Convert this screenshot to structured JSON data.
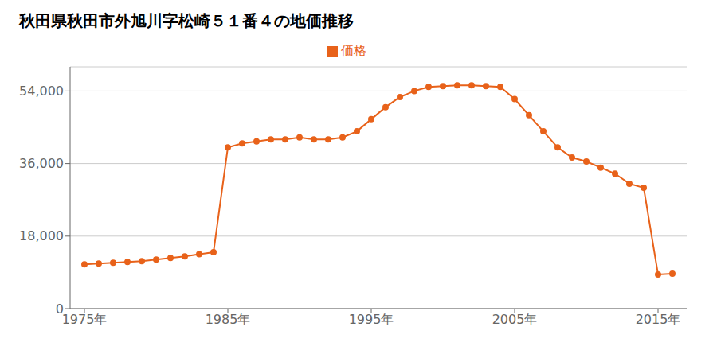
{
  "chart_data": {
    "type": "line",
    "title": "秋田県秋田市外旭川字松崎５１番４の地価推移",
    "x": [
      1975,
      1976,
      1977,
      1978,
      1979,
      1980,
      1981,
      1982,
      1983,
      1984,
      1985,
      1986,
      1987,
      1988,
      1989,
      1990,
      1991,
      1992,
      1993,
      1994,
      1995,
      1996,
      1997,
      1998,
      1999,
      2000,
      2001,
      2002,
      2003,
      2004,
      2005,
      2006,
      2007,
      2008,
      2009,
      2010,
      2011,
      2012,
      2013,
      2014,
      2015,
      2016
    ],
    "series": [
      {
        "name": "価格",
        "color": "#e8621a",
        "marker": "circle",
        "values": [
          11000,
          11200,
          11400,
          11600,
          11800,
          12200,
          12600,
          13000,
          13500,
          14000,
          40000,
          41000,
          41500,
          42000,
          42000,
          42500,
          42000,
          42000,
          42500,
          44000,
          47000,
          50000,
          52500,
          54000,
          55000,
          55200,
          55400,
          55400,
          55200,
          55000,
          52000,
          48000,
          44000,
          40000,
          37500,
          36500,
          35000,
          33500,
          31000,
          30000,
          8500,
          8700
        ]
      }
    ],
    "xlim": [
      1974,
      2017
    ],
    "xticks": [
      {
        "value": 1975,
        "label": "1975年"
      },
      {
        "value": 1985,
        "label": "1985年"
      },
      {
        "value": 1995,
        "label": "1995年"
      },
      {
        "value": 2005,
        "label": "2005年"
      },
      {
        "value": 2015,
        "label": "2015年"
      }
    ],
    "ylim": [
      0,
      60000
    ],
    "yticks": [
      0,
      {
        "value": 18000,
        "label": "18,000"
      },
      {
        "value": 36000,
        "label": "36,000"
      },
      {
        "value": 54000,
        "label": "54,000"
      }
    ],
    "grid": true
  }
}
